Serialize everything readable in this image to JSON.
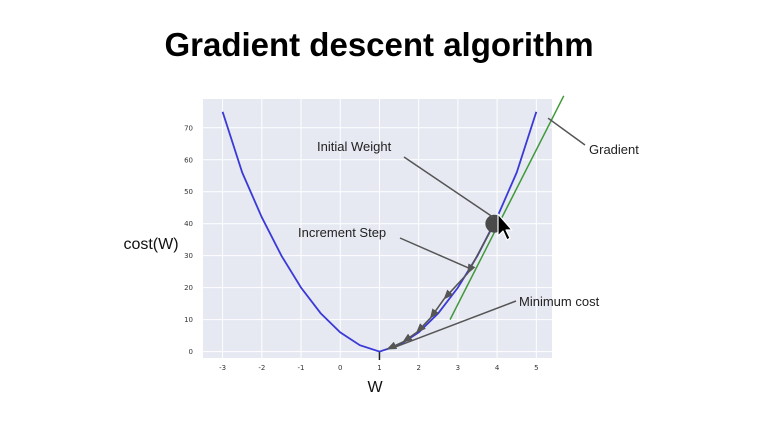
{
  "title": "Gradient descent algorithm",
  "chart_data": {
    "type": "line",
    "title": "Gradient descent algorithm",
    "xlabel": "W",
    "ylabel": "cost(W)",
    "xlim": [
      -3.5,
      5.4
    ],
    "ylim": [
      -2,
      79
    ],
    "x_ticks": [
      "-3",
      "-2",
      "-1",
      "0",
      "1",
      "2",
      "3",
      "4",
      "5"
    ],
    "y_ticks": [
      "0",
      "10",
      "20",
      "30",
      "40",
      "50",
      "60",
      "70"
    ],
    "grid": true,
    "series": [
      {
        "x": [
          -3,
          -2.5,
          -2,
          -1.5,
          -1,
          -0.5,
          0,
          0.5,
          1,
          1.5,
          2,
          2.5,
          3,
          3.5,
          4,
          4.5,
          5
        ],
        "y": [
          75,
          56,
          42,
          30,
          20,
          12,
          6,
          2,
          0,
          2,
          6,
          12,
          20,
          30,
          42,
          56,
          75
        ],
        "color": "#3a3ad6"
      }
    ],
    "tangent_line": {
      "x": [
        2.8,
        5.7
      ],
      "y": [
        10,
        80
      ],
      "color": "#3f9a3a"
    },
    "initial_point": {
      "x": 3.93,
      "y": 40
    },
    "steps": [
      {
        "x": 3.93,
        "y": 40
      },
      {
        "x": 3.25,
        "y": 24.5
      },
      {
        "x": 2.65,
        "y": 16.5
      },
      {
        "x": 2.3,
        "y": 10.5
      },
      {
        "x": 1.95,
        "y": 6
      },
      {
        "x": 1.6,
        "y": 3
      },
      {
        "x": 1.2,
        "y": 0.8
      }
    ],
    "annotations": [
      {
        "text": "Initial Weight",
        "point_x": 3.9,
        "point_y": 42
      },
      {
        "text": "Increment Step",
        "point_x": 3.3,
        "point_y": 26
      },
      {
        "text": "Minimum cost",
        "point_x": 1.35,
        "point_y": 1.2
      },
      {
        "text": "Gradient",
        "point_x": 5.3,
        "point_y": 73
      }
    ]
  },
  "colors": {
    "plot_background": "#e6e8f2",
    "grid": "#ffffff",
    "curve": "#3a3ad6",
    "tangent": "#3f9a3a",
    "point": "#4a4a4a",
    "arrow": "#555555"
  }
}
